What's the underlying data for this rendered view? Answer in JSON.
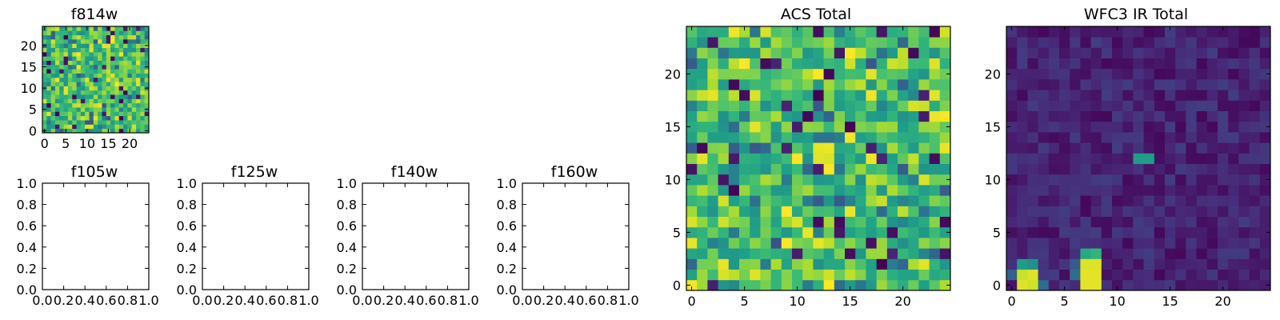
{
  "chart_data": [
    {
      "type": "heatmap",
      "title": "f814w",
      "grid_size": 25,
      "colormap": "viridis",
      "seed": 11,
      "profile": "noise",
      "x_ticks": [
        "0",
        "5",
        "10",
        "15",
        "20"
      ],
      "y_ticks": [
        "0",
        "5",
        "10",
        "15",
        "20"
      ]
    },
    {
      "type": "heatmap",
      "title": "ACS Total",
      "grid_size": 25,
      "colormap": "viridis",
      "seed": 7,
      "profile": "noise",
      "x_ticks": [
        "0",
        "5",
        "10",
        "15",
        "20"
      ],
      "y_ticks": [
        "0",
        "5",
        "10",
        "15",
        "20"
      ]
    },
    {
      "type": "heatmap",
      "title": "WFC3 IR Total",
      "grid_size": 25,
      "colormap": "viridis",
      "seed": 3,
      "profile": "sources",
      "background_range": [
        0.02,
        0.18
      ],
      "hot_pixels": [
        [
          1,
          1,
          0.92
        ],
        [
          2,
          1,
          0.95
        ],
        [
          1,
          0,
          0.95
        ],
        [
          2,
          0,
          0.93
        ],
        [
          1,
          2,
          0.55
        ],
        [
          2,
          2,
          0.5
        ],
        [
          7,
          0,
          0.96
        ],
        [
          8,
          0,
          0.96
        ],
        [
          7,
          1,
          0.96
        ],
        [
          8,
          1,
          0.96
        ],
        [
          7,
          2,
          0.95
        ],
        [
          8,
          2,
          0.95
        ],
        [
          7,
          3,
          0.6
        ],
        [
          8,
          3,
          0.65
        ],
        [
          6,
          1,
          0.35
        ],
        [
          6,
          2,
          0.28
        ],
        [
          12,
          12,
          0.55
        ],
        [
          13,
          12,
          0.55
        ],
        [
          0,
          1,
          0.3
        ],
        [
          3,
          0,
          0.35
        ]
      ],
      "x_ticks": [
        "0",
        "5",
        "10",
        "15",
        "20"
      ],
      "y_ticks": [
        "0",
        "5",
        "10",
        "15",
        "20"
      ]
    },
    {
      "type": "empty",
      "title": "f105w",
      "xlim": [
        0,
        1
      ],
      "ylim": [
        0,
        1
      ],
      "x_ticks": [
        "0.0",
        "0.2",
        "0.4",
        "0.6",
        "0.8",
        "1.0"
      ],
      "y_ticks": [
        "0.0",
        "0.2",
        "0.4",
        "0.6",
        "0.8",
        "1.0"
      ]
    },
    {
      "type": "empty",
      "title": "f125w",
      "xlim": [
        0,
        1
      ],
      "ylim": [
        0,
        1
      ],
      "x_ticks": [
        "0.0",
        "0.2",
        "0.4",
        "0.6",
        "0.8",
        "1.0"
      ],
      "y_ticks": [
        "0.0",
        "0.2",
        "0.4",
        "0.6",
        "0.8",
        "1.0"
      ]
    },
    {
      "type": "empty",
      "title": "f140w",
      "xlim": [
        0,
        1
      ],
      "ylim": [
        0,
        1
      ],
      "x_ticks": [
        "0.0",
        "0.2",
        "0.4",
        "0.6",
        "0.8",
        "1.0"
      ],
      "y_ticks": [
        "0.0",
        "0.2",
        "0.4",
        "0.6",
        "0.8",
        "1.0"
      ]
    },
    {
      "type": "empty",
      "title": "f160w",
      "xlim": [
        0,
        1
      ],
      "ylim": [
        0,
        1
      ],
      "x_ticks": [
        "0.0",
        "0.2",
        "0.4",
        "0.6",
        "0.8",
        "1.0"
      ],
      "y_ticks": [
        "0.0",
        "0.2",
        "0.4",
        "0.6",
        "0.8",
        "1.0"
      ]
    }
  ]
}
